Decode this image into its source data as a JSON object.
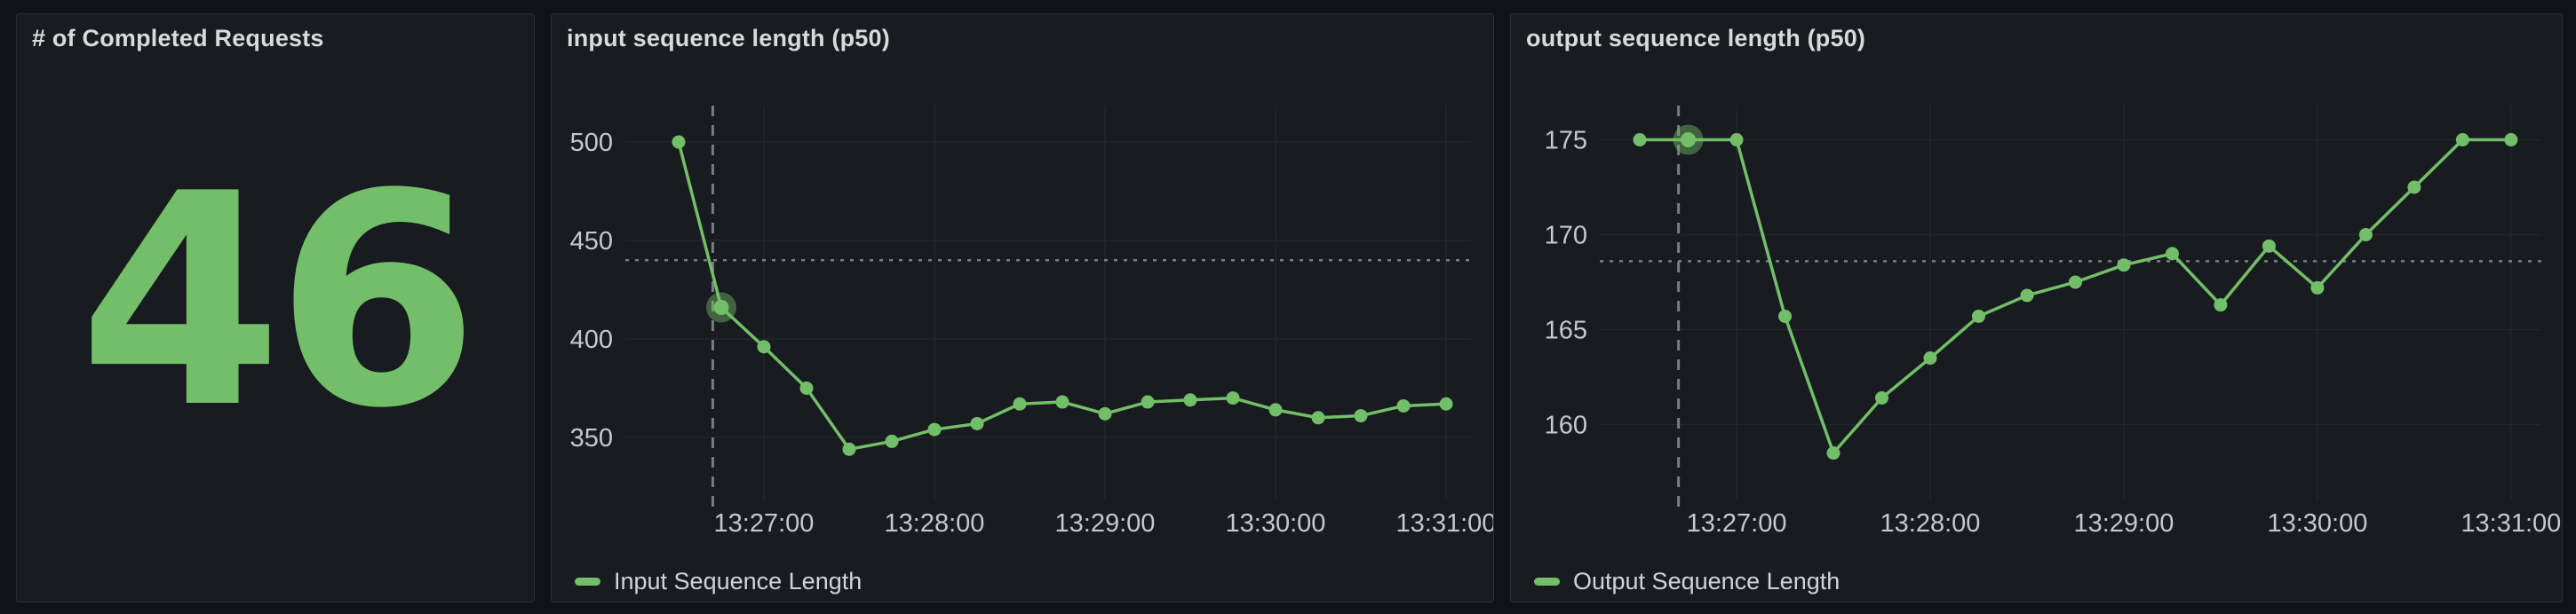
{
  "page": {
    "background": "#111217",
    "panel_background": "#181b1f",
    "accent_green": "#73bf69"
  },
  "chart_data": [
    {
      "type": "stat",
      "title": "# of Completed Requests",
      "value": "46",
      "color": "#73bf69"
    },
    {
      "type": "line",
      "title": "input sequence length (p50)",
      "legend": "Input Sequence Length",
      "color": "#73bf69",
      "x": [
        "13:26:30",
        "13:26:45",
        "13:27:00",
        "13:27:15",
        "13:27:30",
        "13:27:45",
        "13:28:00",
        "13:28:15",
        "13:28:30",
        "13:28:45",
        "13:29:00",
        "13:29:15",
        "13:29:30",
        "13:29:45",
        "13:30:00",
        "13:30:15",
        "13:30:30",
        "13:30:45",
        "13:31:00"
      ],
      "values": [
        500,
        416,
        396,
        375,
        344,
        348,
        354,
        357,
        367,
        368,
        362,
        368,
        369,
        370,
        364,
        360,
        361,
        366,
        367
      ],
      "y_ticks": [
        350,
        400,
        450,
        500
      ],
      "x_ticks": [
        "13:27:00",
        "13:28:00",
        "13:29:00",
        "13:30:00",
        "13:31:00"
      ],
      "ylim": [
        318,
        518.5
      ],
      "grid": true,
      "legend_position": "bottom-left",
      "highlight_time": "13:26:45",
      "cursor": {
        "time": "13:26:42",
        "value": 440
      }
    },
    {
      "type": "line",
      "title": "output sequence length (p50)",
      "legend": "Output Sequence Length",
      "color": "#73bf69",
      "x": [
        "13:26:30",
        "13:26:45",
        "13:27:00",
        "13:27:15",
        "13:27:30",
        "13:27:45",
        "13:28:00",
        "13:28:15",
        "13:28:30",
        "13:28:45",
        "13:29:00",
        "13:29:15",
        "13:29:30",
        "13:29:45",
        "13:30:00",
        "13:30:15",
        "13:30:30",
        "13:30:45",
        "13:31:00"
      ],
      "values": [
        175,
        175,
        175,
        165.7,
        158.5,
        161.4,
        163.5,
        165.7,
        166.8,
        167.5,
        168.4,
        169,
        166.3,
        169.4,
        167.2,
        170,
        172.5,
        175,
        175
      ],
      "y_ticks": [
        160,
        165,
        170,
        175
      ],
      "x_ticks": [
        "13:27:00",
        "13:28:00",
        "13:29:00",
        "13:30:00",
        "13:31:00"
      ],
      "ylim": [
        156,
        176.8
      ],
      "grid": true,
      "legend_position": "bottom-left",
      "highlight_time": "13:26:45",
      "cursor": {
        "time": "13:26:42",
        "value": 168.6
      }
    }
  ]
}
